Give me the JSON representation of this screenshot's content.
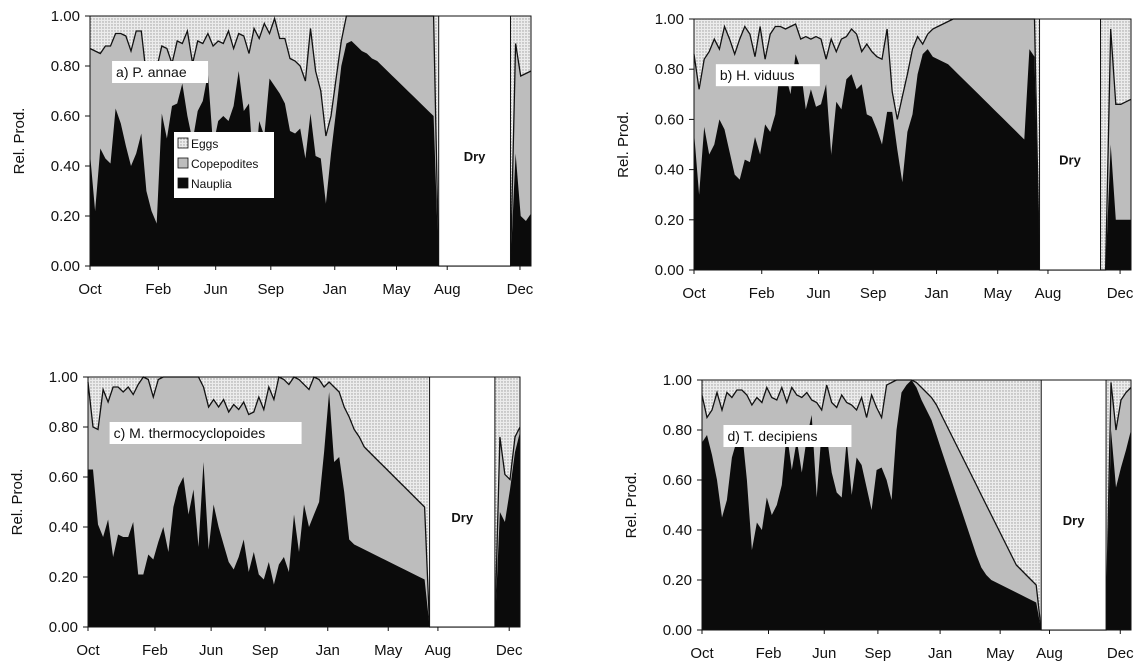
{
  "colors": {
    "nauplia": "#0b0b0b",
    "copepodites": "#bdbdbd",
    "eggs": "#e0e0e0",
    "dry": "#ffffff",
    "axis": "#111111"
  },
  "legend": [
    "Eggs",
    "Copepodites",
    "Nauplia"
  ],
  "chart_data": [
    {
      "type": "area",
      "panel_label": "a) P. annae",
      "ylabel": "Rel. Prod.",
      "ylim": [
        0,
        1
      ],
      "yticks": [
        "0.00",
        "0.20",
        "0.40",
        "0.60",
        "0.80",
        "1.00"
      ],
      "xtick_labels": [
        "Oct",
        "Feb",
        "Jun",
        "Sep",
        "Jan",
        "May",
        "Aug",
        "Dec"
      ],
      "dry_label": "Dry",
      "dry_period": [
        68,
        82
      ],
      "xmax": 86,
      "nauplia": [
        0.45,
        0.22,
        0.47,
        0.43,
        0.41,
        0.63,
        0.57,
        0.48,
        0.4,
        0.45,
        0.53,
        0.3,
        0.22,
        0.17,
        0.61,
        0.51,
        0.64,
        0.65,
        0.73,
        0.6,
        0.5,
        0.62,
        0.66,
        0.77,
        0.48,
        0.58,
        0.6,
        0.58,
        0.64,
        0.78,
        0.62,
        0.65,
        0.35,
        0.58,
        0.52,
        0.75,
        0.72,
        0.69,
        0.65,
        0.54,
        0.53,
        0.55,
        0.43,
        0.61,
        0.44,
        0.43,
        0.25,
        0.45,
        0.62,
        0.8,
        0.89,
        0.9,
        0.88,
        0.86,
        0.85,
        0.83,
        0.82,
        0.8,
        0.78,
        0.76,
        0.74,
        0.72,
        0.7,
        0.68,
        0.66,
        0.64,
        0.62,
        0.6,
        0.0,
        0.0,
        0.0,
        0.0,
        0.0,
        0.0,
        0.0,
        0.0,
        0.0,
        0.0,
        0.0,
        0.0,
        0.0,
        0.0,
        0.0,
        0.45,
        0.2,
        0.18,
        0.21
      ],
      "copepodites": [
        0.87,
        0.86,
        0.85,
        0.88,
        0.88,
        0.93,
        0.93,
        0.92,
        0.86,
        0.94,
        0.94,
        0.76,
        0.76,
        0.79,
        0.88,
        0.87,
        0.81,
        0.9,
        0.89,
        0.94,
        0.81,
        0.9,
        0.89,
        0.93,
        0.88,
        0.9,
        0.89,
        0.94,
        0.87,
        0.93,
        0.92,
        0.85,
        0.95,
        0.91,
        0.97,
        0.93,
        0.99,
        0.91,
        0.91,
        0.83,
        0.82,
        0.8,
        0.74,
        0.95,
        0.78,
        0.7,
        0.52,
        0.6,
        0.75,
        0.9,
        1.0,
        1.0,
        1.0,
        1.0,
        1.0,
        1.0,
        1.0,
        1.0,
        1.0,
        1.0,
        1.0,
        1.0,
        1.0,
        1.0,
        1.0,
        1.0,
        1.0,
        1.0,
        0.0,
        0.0,
        0.0,
        0.0,
        0.0,
        0.0,
        0.0,
        0.0,
        0.0,
        0.0,
        0.0,
        0.0,
        0.0,
        0.0,
        0.0,
        0.89,
        0.76,
        0.77,
        0.78
      ]
    },
    {
      "type": "area",
      "panel_label": "b) H. viduus",
      "ylabel": "Rel. Prod.",
      "ylim": [
        0,
        1
      ],
      "yticks": [
        "0.00",
        "0.20",
        "0.40",
        "0.60",
        "0.80",
        "1.00"
      ],
      "xtick_labels": [
        "Oct",
        "Feb",
        "Jun",
        "Sep",
        "Jan",
        "May",
        "Aug",
        "Dec"
      ],
      "dry_label": "Dry",
      "dry_period": [
        68,
        80
      ],
      "xmax": 86,
      "nauplia": [
        0.55,
        0.3,
        0.57,
        0.46,
        0.5,
        0.6,
        0.56,
        0.47,
        0.38,
        0.36,
        0.44,
        0.43,
        0.53,
        0.46,
        0.58,
        0.55,
        0.62,
        0.82,
        0.78,
        0.7,
        0.86,
        0.8,
        0.64,
        0.72,
        0.65,
        0.66,
        0.74,
        0.46,
        0.67,
        0.64,
        0.76,
        0.78,
        0.72,
        0.74,
        0.62,
        0.61,
        0.56,
        0.5,
        0.63,
        0.63,
        0.48,
        0.35,
        0.55,
        0.62,
        0.78,
        0.86,
        0.88,
        0.85,
        0.84,
        0.83,
        0.82,
        0.8,
        0.78,
        0.76,
        0.74,
        0.72,
        0.7,
        0.68,
        0.66,
        0.64,
        0.62,
        0.6,
        0.58,
        0.56,
        0.54,
        0.52,
        0.88,
        0.85,
        0.0,
        0.0,
        0.0,
        0.0,
        0.0,
        0.0,
        0.0,
        0.0,
        0.0,
        0.0,
        0.0,
        0.0,
        0.0,
        0.0,
        0.5,
        0.2,
        0.2,
        0.2,
        0.2
      ],
      "copepodites": [
        0.86,
        0.72,
        0.84,
        0.87,
        0.92,
        0.88,
        0.97,
        0.92,
        0.86,
        0.92,
        0.97,
        0.94,
        0.85,
        0.97,
        0.84,
        0.94,
        0.97,
        0.97,
        0.96,
        0.97,
        0.98,
        0.92,
        0.93,
        0.92,
        0.93,
        0.92,
        0.84,
        0.92,
        0.87,
        0.92,
        0.93,
        0.96,
        0.94,
        0.87,
        0.9,
        0.87,
        0.85,
        0.84,
        0.96,
        0.71,
        0.6,
        0.69,
        0.78,
        0.88,
        0.93,
        0.9,
        0.94,
        0.96,
        0.97,
        0.98,
        0.99,
        1.0,
        1.0,
        1.0,
        1.0,
        1.0,
        1.0,
        1.0,
        1.0,
        1.0,
        1.0,
        1.0,
        1.0,
        1.0,
        1.0,
        1.0,
        1.0,
        1.0,
        0.0,
        0.0,
        0.0,
        0.0,
        0.0,
        0.0,
        0.0,
        0.0,
        0.0,
        0.0,
        0.0,
        0.0,
        0.0,
        0.0,
        0.96,
        0.66,
        0.66,
        0.67,
        0.68
      ]
    },
    {
      "type": "area",
      "panel_label": "c) M. thermocyclopoides",
      "ylabel": "Rel. Prod.",
      "ylim": [
        0,
        1
      ],
      "yticks": [
        "0.00",
        "0.20",
        "0.40",
        "0.60",
        "0.80",
        "1.00"
      ],
      "xtick_labels": [
        "Oct",
        "Feb",
        "Jun",
        "Sep",
        "Jan",
        "May",
        "Aug",
        "Dec"
      ],
      "dry_label": "Dry",
      "dry_period": [
        68,
        81
      ],
      "xmax": 86,
      "nauplia": [
        0.63,
        0.63,
        0.41,
        0.36,
        0.43,
        0.28,
        0.37,
        0.36,
        0.36,
        0.42,
        0.21,
        0.21,
        0.29,
        0.27,
        0.34,
        0.4,
        0.3,
        0.48,
        0.56,
        0.6,
        0.45,
        0.55,
        0.32,
        0.66,
        0.31,
        0.49,
        0.4,
        0.33,
        0.26,
        0.23,
        0.28,
        0.35,
        0.22,
        0.3,
        0.21,
        0.19,
        0.26,
        0.17,
        0.25,
        0.28,
        0.22,
        0.45,
        0.3,
        0.49,
        0.4,
        0.45,
        0.5,
        0.7,
        0.94,
        0.66,
        0.68,
        0.54,
        0.35,
        0.33,
        0.32,
        0.31,
        0.3,
        0.29,
        0.28,
        0.27,
        0.26,
        0.25,
        0.24,
        0.23,
        0.22,
        0.21,
        0.2,
        0.19,
        0.0,
        0.0,
        0.0,
        0.0,
        0.0,
        0.0,
        0.0,
        0.0,
        0.0,
        0.0,
        0.0,
        0.0,
        0.0,
        0.0,
        0.46,
        0.42,
        0.55,
        0.7,
        0.78
      ],
      "copepodites": [
        0.98,
        0.8,
        0.79,
        0.95,
        0.9,
        0.96,
        0.96,
        0.94,
        0.96,
        0.93,
        0.97,
        1.0,
        0.99,
        0.92,
        0.99,
        1.0,
        1.0,
        1.0,
        1.0,
        1.0,
        1.0,
        1.0,
        1.0,
        0.96,
        0.88,
        0.91,
        0.88,
        0.91,
        0.86,
        0.89,
        0.87,
        0.9,
        0.85,
        0.86,
        0.92,
        0.87,
        0.96,
        0.91,
        1.0,
        0.99,
        0.97,
        1.0,
        0.99,
        0.97,
        0.95,
        1.0,
        0.99,
        0.96,
        0.98,
        0.96,
        0.94,
        0.88,
        0.84,
        0.79,
        0.76,
        0.72,
        0.7,
        0.68,
        0.66,
        0.64,
        0.62,
        0.6,
        0.58,
        0.56,
        0.54,
        0.52,
        0.5,
        0.48,
        0.0,
        0.0,
        0.0,
        0.0,
        0.0,
        0.0,
        0.0,
        0.0,
        0.0,
        0.0,
        0.0,
        0.0,
        0.0,
        0.0,
        0.76,
        0.61,
        0.59,
        0.76,
        0.8
      ]
    },
    {
      "type": "area",
      "panel_label": "d) T. decipiens",
      "ylabel": "Rel. Prod.",
      "ylim": [
        0,
        1
      ],
      "yticks": [
        "0.00",
        "0.20",
        "0.40",
        "0.60",
        "0.80",
        "1.00"
      ],
      "xtick_labels": [
        "Oct",
        "Feb",
        "Jun",
        "Sep",
        "Jan",
        "May",
        "Aug",
        "Dec"
      ],
      "dry_label": "Dry",
      "dry_period": [
        68,
        81
      ],
      "xmax": 86,
      "nauplia": [
        0.75,
        0.78,
        0.7,
        0.6,
        0.45,
        0.52,
        0.69,
        0.76,
        0.8,
        0.6,
        0.32,
        0.43,
        0.4,
        0.53,
        0.46,
        0.5,
        0.58,
        0.79,
        0.64,
        0.76,
        0.63,
        0.77,
        0.86,
        0.53,
        0.8,
        0.78,
        0.63,
        0.55,
        0.53,
        0.76,
        0.54,
        0.69,
        0.66,
        0.57,
        0.48,
        0.64,
        0.65,
        0.6,
        0.52,
        0.8,
        0.95,
        0.98,
        1.0,
        0.97,
        0.92,
        0.88,
        0.84,
        0.78,
        0.72,
        0.66,
        0.6,
        0.54,
        0.48,
        0.42,
        0.36,
        0.3,
        0.25,
        0.22,
        0.2,
        0.19,
        0.18,
        0.17,
        0.16,
        0.15,
        0.14,
        0.13,
        0.12,
        0.11,
        0.0,
        0.0,
        0.0,
        0.0,
        0.0,
        0.0,
        0.0,
        0.0,
        0.0,
        0.0,
        0.0,
        0.0,
        0.0,
        0.0,
        0.8,
        0.57,
        0.65,
        0.72,
        0.8
      ],
      "copepodites": [
        0.94,
        0.85,
        0.88,
        0.95,
        0.88,
        0.95,
        0.93,
        0.96,
        0.96,
        0.94,
        0.9,
        0.93,
        0.91,
        0.97,
        0.93,
        0.92,
        0.97,
        0.91,
        0.97,
        0.94,
        0.93,
        0.95,
        0.92,
        0.91,
        0.88,
        0.98,
        0.91,
        0.89,
        0.94,
        0.91,
        0.9,
        0.88,
        0.93,
        0.85,
        0.94,
        0.89,
        0.85,
        0.98,
        0.99,
        1.0,
        1.0,
        1.0,
        1.0,
        0.99,
        0.97,
        0.95,
        0.93,
        0.9,
        0.86,
        0.82,
        0.78,
        0.74,
        0.7,
        0.66,
        0.62,
        0.58,
        0.54,
        0.5,
        0.46,
        0.42,
        0.38,
        0.34,
        0.3,
        0.26,
        0.24,
        0.22,
        0.2,
        0.18,
        0.0,
        0.0,
        0.0,
        0.0,
        0.0,
        0.0,
        0.0,
        0.0,
        0.0,
        0.0,
        0.0,
        0.0,
        0.0,
        0.0,
        0.99,
        0.8,
        0.92,
        0.95,
        0.97
      ]
    }
  ]
}
